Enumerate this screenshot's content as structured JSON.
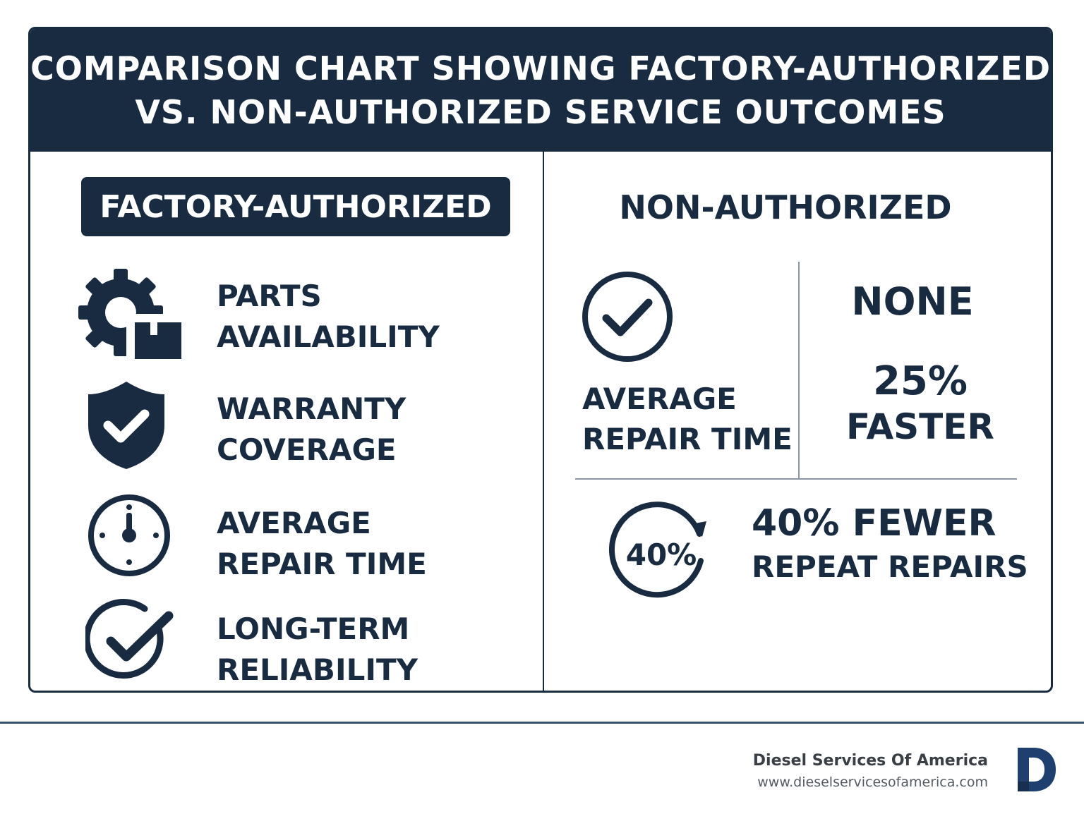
{
  "header": {
    "line1": "COMPARISON CHART SHOWING FACTORY-AUTHORIZED",
    "line2": "VS. NON-AUTHORIZED SERVICE OUTCOMES"
  },
  "left": {
    "title": "FACTORY-AUTHORIZED",
    "features": [
      {
        "icon": "gear-box-icon",
        "line1": "PARTS",
        "line2": "AVAILABILITY"
      },
      {
        "icon": "shield-check-icon",
        "line1": "WARRANTY",
        "line2": "COVERAGE"
      },
      {
        "icon": "clock-icon",
        "line1": "AVERAGE",
        "line2": "REPAIR TIME"
      },
      {
        "icon": "circle-check-icon",
        "line1": "LONG-TERM",
        "line2": "RELIABILITY"
      }
    ]
  },
  "right": {
    "title": "NON-AUTHORIZED",
    "comparison": {
      "icon": "check-circle-icon",
      "label_line1": "AVERAGE",
      "label_line2": "REPAIR TIME",
      "none_value": "NONE",
      "percent": "25%",
      "percent_word": "FASTER"
    },
    "repeat": {
      "icon": "circular-arrow-icon",
      "badge": "40%",
      "line1": "40% FEWER",
      "line2": "REPEAT REPAIRS"
    }
  },
  "footer": {
    "company": "Diesel Services Of America",
    "url": "www.dieselservicesofamerica.com",
    "logo_letter": "D"
  },
  "colors": {
    "navy": "#182b40",
    "logo_blue": "#1f3f6e"
  }
}
